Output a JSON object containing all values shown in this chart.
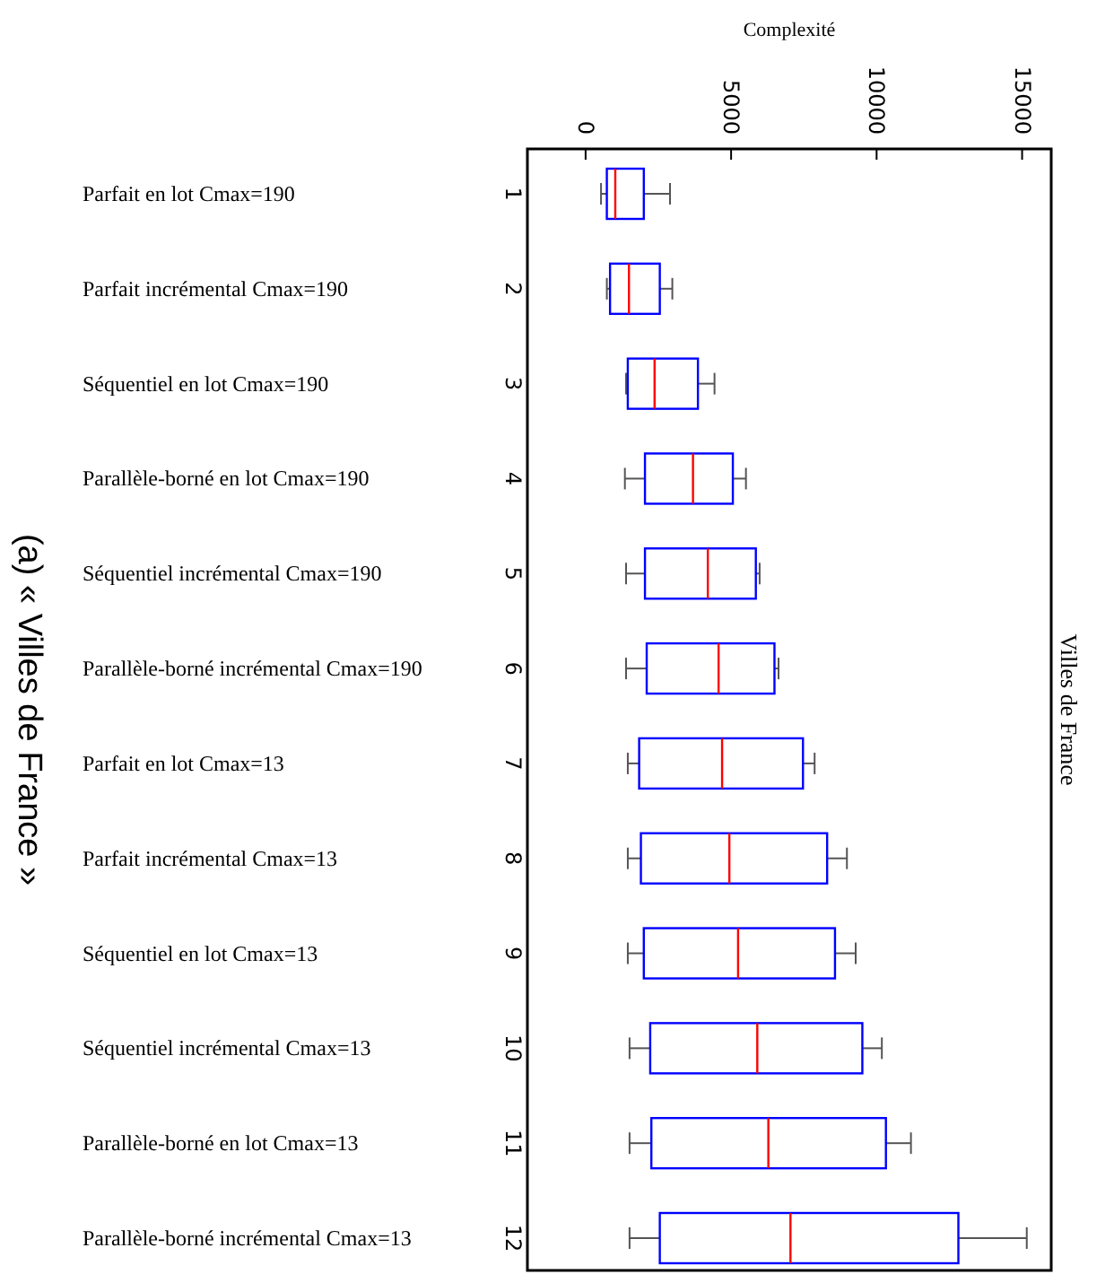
{
  "chart_data": {
    "type": "box",
    "orientation": "horizontal",
    "title": "Villes de France",
    "xlabel": "Complexité",
    "categories": [
      "1",
      "2",
      "3",
      "4",
      "5",
      "6",
      "7",
      "8",
      "9",
      "10",
      "11",
      "12"
    ],
    "xlim": [
      -2000,
      16000
    ],
    "xticks": [
      0,
      5000,
      10000,
      15000
    ],
    "grid": false,
    "color": "#0000ff",
    "boxes": [
      {
        "low": 530,
        "q1": 730,
        "median": 1020,
        "q3": 2000,
        "high": 2900
      },
      {
        "low": 730,
        "q1": 840,
        "median": 1490,
        "q3": 2550,
        "high": 2980
      },
      {
        "low": 1390,
        "q1": 1450,
        "median": 2370,
        "q3": 3860,
        "high": 4430
      },
      {
        "low": 1350,
        "q1": 2040,
        "median": 3690,
        "q3": 5060,
        "high": 5510
      },
      {
        "low": 1390,
        "q1": 2040,
        "median": 4200,
        "q3": 5850,
        "high": 5980
      },
      {
        "low": 1390,
        "q1": 2100,
        "median": 4570,
        "q3": 6490,
        "high": 6630
      },
      {
        "low": 1450,
        "q1": 1840,
        "median": 4690,
        "q3": 7470,
        "high": 7870
      },
      {
        "low": 1450,
        "q1": 1900,
        "median": 4940,
        "q3": 8300,
        "high": 8980
      },
      {
        "low": 1450,
        "q1": 2000,
        "median": 5240,
        "q3": 8570,
        "high": 9280
      },
      {
        "low": 1510,
        "q1": 2220,
        "median": 5900,
        "q3": 9510,
        "high": 10180
      },
      {
        "low": 1510,
        "q1": 2260,
        "median": 6280,
        "q3": 10320,
        "high": 11180
      },
      {
        "low": 1510,
        "q1": 2550,
        "median": 7040,
        "q3": 12810,
        "high": 15160
      }
    ],
    "annotations": [
      "Parfait en lot Cmax=190",
      "Parfait incrémental Cmax=190",
      "Séquentiel en lot Cmax=190",
      "Parallèle-borné en lot Cmax=190",
      "Séquentiel incrémental Cmax=190",
      "Parallèle-borné incrémental Cmax=190",
      "Parfait en lot Cmax=13",
      "Parfait incrémental Cmax=13",
      "Séquentiel en lot Cmax=13",
      "Séquentiel incrémental Cmax=13",
      "Parallèle-borné en lot Cmax=13",
      "Parallèle-borné incrémental Cmax=13",
      "(a) « Villes de France »"
    ]
  }
}
